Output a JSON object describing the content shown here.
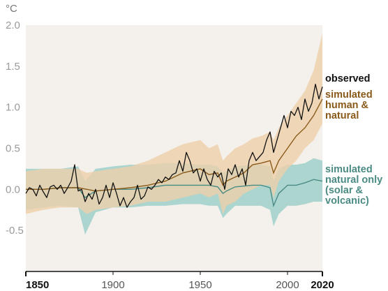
{
  "chart_data": {
    "type": "line",
    "unit_label": "°C",
    "xlim": [
      1850,
      2020
    ],
    "ylim": [
      -1.0,
      2.0
    ],
    "y_ticks": [
      "2.0",
      "1.5",
      "1.0",
      "0.5",
      "0.0",
      "-0.5"
    ],
    "y_tick_values": [
      2.0,
      1.5,
      1.0,
      0.5,
      0.0,
      -0.5
    ],
    "x_ticks": [
      "1850",
      "1900",
      "1950",
      "2000",
      "2020"
    ],
    "x_tick_values": [
      1850,
      1900,
      1950,
      2000,
      2020
    ],
    "x_ticks_bold": [
      true,
      false,
      false,
      false,
      true
    ],
    "grid": false,
    "colors": {
      "plot_background": "#f4f1ec",
      "observed": "#111111",
      "human_natural": "#8a5a1a",
      "human_natural_band": "#eccfa9",
      "natural_only": "#4b8b84",
      "natural_only_band": "#9fd0cb",
      "overlap_band": "#c3c7a8"
    },
    "labels": {
      "observed": [
        "observed"
      ],
      "human_natural": [
        "simulated",
        "human &",
        "natural"
      ],
      "natural_only": [
        "simulated",
        "natural only",
        "(solar &",
        "volcanic)"
      ]
    },
    "series": [
      {
        "key": "observed",
        "x": [
          1850,
          1852,
          1854,
          1856,
          1858,
          1860,
          1862,
          1864,
          1866,
          1868,
          1870,
          1872,
          1874,
          1876,
          1878,
          1880,
          1882,
          1884,
          1886,
          1888,
          1890,
          1892,
          1894,
          1896,
          1898,
          1900,
          1902,
          1904,
          1906,
          1908,
          1910,
          1912,
          1914,
          1916,
          1918,
          1920,
          1922,
          1924,
          1926,
          1928,
          1930,
          1932,
          1934,
          1936,
          1938,
          1940,
          1942,
          1944,
          1946,
          1948,
          1950,
          1952,
          1954,
          1956,
          1958,
          1960,
          1962,
          1964,
          1966,
          1968,
          1970,
          1972,
          1974,
          1976,
          1978,
          1980,
          1982,
          1984,
          1986,
          1988,
          1990,
          1992,
          1994,
          1996,
          1998,
          2000,
          2002,
          2004,
          2006,
          2008,
          2010,
          2012,
          2014,
          2016,
          2018,
          2020
        ],
        "values": [
          -0.05,
          0.02,
          0.0,
          -0.08,
          0.05,
          -0.03,
          -0.1,
          0.03,
          0.05,
          0.0,
          0.05,
          -0.05,
          0.02,
          0.1,
          0.3,
          -0.02,
          0.0,
          -0.15,
          -0.05,
          -0.12,
          0.0,
          -0.18,
          -0.1,
          0.05,
          -0.1,
          0.08,
          -0.05,
          -0.2,
          -0.1,
          -0.22,
          -0.15,
          -0.1,
          0.05,
          -0.12,
          -0.08,
          0.03,
          0.0,
          0.05,
          0.12,
          0.08,
          0.15,
          0.12,
          0.18,
          0.2,
          0.35,
          0.22,
          0.45,
          0.35,
          0.2,
          0.25,
          0.1,
          0.25,
          0.12,
          0.05,
          0.22,
          0.15,
          0.2,
          0.0,
          0.25,
          0.18,
          0.3,
          0.15,
          0.25,
          0.05,
          0.35,
          0.45,
          0.35,
          0.4,
          0.45,
          0.6,
          0.7,
          0.45,
          0.6,
          0.75,
          0.9,
          0.75,
          0.95,
          0.9,
          1.0,
          0.85,
          1.1,
          0.95,
          1.05,
          1.28,
          1.1,
          1.25
        ]
      },
      {
        "key": "human_natural",
        "x": [
          1850,
          1860,
          1870,
          1880,
          1885,
          1890,
          1900,
          1910,
          1920,
          1930,
          1940,
          1950,
          1955,
          1960,
          1963,
          1965,
          1970,
          1975,
          1980,
          1985,
          1990,
          1992,
          1995,
          2000,
          2005,
          2010,
          2015,
          2020
        ],
        "values": [
          0.0,
          0.0,
          0.02,
          0.02,
          0.0,
          -0.02,
          0.0,
          0.02,
          0.05,
          0.1,
          0.2,
          0.25,
          0.18,
          0.2,
          0.05,
          0.1,
          0.15,
          0.2,
          0.3,
          0.32,
          0.35,
          0.2,
          0.35,
          0.5,
          0.65,
          0.75,
          0.9,
          1.1
        ],
        "band_lower": [
          -0.3,
          -0.25,
          -0.22,
          -0.22,
          -0.3,
          -0.25,
          -0.22,
          -0.2,
          -0.15,
          -0.15,
          -0.1,
          -0.05,
          -0.1,
          -0.05,
          -0.3,
          -0.2,
          -0.15,
          -0.05,
          0.0,
          0.05,
          0.05,
          -0.1,
          0.1,
          0.25,
          0.35,
          0.5,
          0.6,
          0.8
        ],
        "band_upper": [
          0.22,
          0.25,
          0.25,
          0.25,
          0.2,
          0.22,
          0.25,
          0.28,
          0.35,
          0.45,
          0.55,
          0.6,
          0.5,
          0.55,
          0.35,
          0.4,
          0.5,
          0.55,
          0.62,
          0.65,
          0.7,
          0.6,
          0.75,
          0.9,
          1.05,
          1.2,
          1.45,
          1.9
        ]
      },
      {
        "key": "natural_only",
        "x": [
          1850,
          1860,
          1870,
          1880,
          1884,
          1890,
          1900,
          1910,
          1920,
          1930,
          1940,
          1950,
          1955,
          1960,
          1963,
          1965,
          1970,
          1980,
          1985,
          1990,
          1992,
          1995,
          2000,
          2005,
          2010,
          2015,
          2020
        ],
        "values": [
          0.0,
          0.0,
          0.02,
          0.02,
          -0.1,
          -0.02,
          0.0,
          0.0,
          0.02,
          0.05,
          0.05,
          0.05,
          0.05,
          0.03,
          -0.05,
          -0.02,
          0.03,
          0.05,
          0.05,
          0.02,
          -0.2,
          -0.05,
          0.05,
          0.05,
          0.08,
          0.12,
          0.1
        ],
        "band_lower": [
          -0.25,
          -0.22,
          -0.2,
          -0.22,
          -0.55,
          -0.28,
          -0.22,
          -0.22,
          -0.2,
          -0.2,
          -0.18,
          -0.18,
          -0.2,
          -0.2,
          -0.35,
          -0.3,
          -0.2,
          -0.2,
          -0.2,
          -0.25,
          -0.45,
          -0.3,
          -0.2,
          -0.2,
          -0.18,
          -0.15,
          -0.15
        ],
        "band_upper": [
          0.25,
          0.25,
          0.25,
          0.28,
          0.1,
          0.25,
          0.28,
          0.3,
          0.3,
          0.32,
          0.32,
          0.3,
          0.3,
          0.28,
          0.2,
          0.22,
          0.28,
          0.3,
          0.3,
          0.28,
          0.1,
          0.25,
          0.3,
          0.3,
          0.32,
          0.38,
          0.35
        ]
      }
    ]
  }
}
